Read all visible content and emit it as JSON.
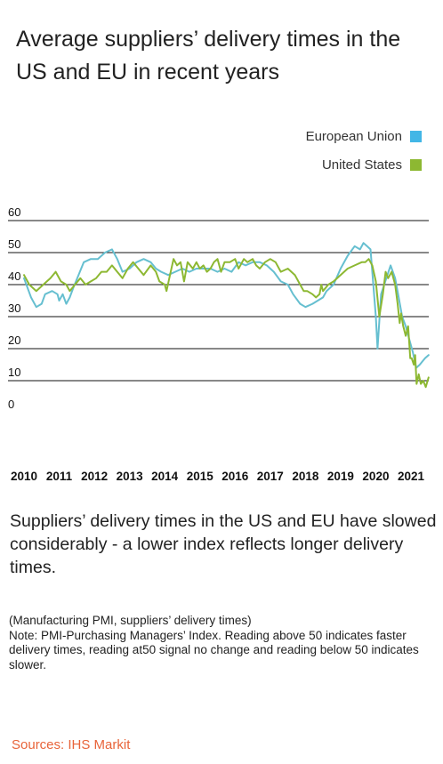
{
  "title": "Average suppliers’ delivery times in the US and EU in recent years",
  "subtitle": "Suppliers’ delivery times in the US and EU have slowed considerably - a lower index reflects longer delivery times.",
  "notes": {
    "line1": "(Manufacturing PMI, suppliers’ delivery times)",
    "line2": "Note: PMI-Purchasing Managers’ Index. Reading above 50 indicates faster delivery times, reading at50 signal no change and reading below 50 indicates slower."
  },
  "source": "Sources: IHS Markit",
  "colors": {
    "eu": "#66bfd0",
    "us": "#8db832",
    "grid": "#111111",
    "source": "#e8643a"
  },
  "legend": [
    {
      "label": "European Union",
      "color": "#42b6e6"
    },
    {
      "label": "United States",
      "color": "#8db832"
    }
  ],
  "chart_data": {
    "type": "line",
    "title": "Average suppliers’ delivery times in the US and EU in recent years",
    "xlabel": "",
    "ylabel": "",
    "xlim": [
      2010,
      2021.55
    ],
    "ylim": [
      0,
      60
    ],
    "yticks": [
      0,
      10,
      20,
      30,
      40,
      50,
      60
    ],
    "xticks": [
      2010,
      2011,
      2012,
      2013,
      2014,
      2015,
      2016,
      2017,
      2018,
      2019,
      2020,
      2021
    ],
    "grid": true,
    "legend_position": "top-right",
    "series": [
      {
        "name": "European Union",
        "color": "#66bfd0",
        "points": [
          [
            2010.0,
            42
          ],
          [
            2010.2,
            36
          ],
          [
            2010.35,
            33
          ],
          [
            2010.5,
            34
          ],
          [
            2010.6,
            37
          ],
          [
            2010.8,
            38
          ],
          [
            2010.95,
            37
          ],
          [
            2011.0,
            35
          ],
          [
            2011.1,
            37
          ],
          [
            2011.2,
            34
          ],
          [
            2011.3,
            36
          ],
          [
            2011.4,
            39
          ],
          [
            2011.55,
            43
          ],
          [
            2011.7,
            47
          ],
          [
            2011.9,
            48
          ],
          [
            2012.1,
            48
          ],
          [
            2012.3,
            50
          ],
          [
            2012.5,
            51
          ],
          [
            2012.65,
            48
          ],
          [
            2012.8,
            44
          ],
          [
            2013.0,
            45
          ],
          [
            2013.2,
            47
          ],
          [
            2013.4,
            48
          ],
          [
            2013.6,
            47
          ],
          [
            2013.75,
            45
          ],
          [
            2013.9,
            44
          ],
          [
            2014.1,
            43
          ],
          [
            2014.3,
            44
          ],
          [
            2014.5,
            45
          ],
          [
            2014.7,
            44
          ],
          [
            2014.9,
            45
          ],
          [
            2015.1,
            45
          ],
          [
            2015.3,
            45
          ],
          [
            2015.5,
            44
          ],
          [
            2015.7,
            45
          ],
          [
            2015.9,
            44
          ],
          [
            2016.1,
            47
          ],
          [
            2016.3,
            46
          ],
          [
            2016.5,
            47
          ],
          [
            2016.7,
            47
          ],
          [
            2016.9,
            46
          ],
          [
            2017.1,
            44
          ],
          [
            2017.3,
            41
          ],
          [
            2017.5,
            40
          ],
          [
            2017.65,
            37
          ],
          [
            2017.85,
            34
          ],
          [
            2018.0,
            33
          ],
          [
            2018.2,
            34
          ],
          [
            2018.35,
            35
          ],
          [
            2018.5,
            36
          ],
          [
            2018.6,
            38
          ],
          [
            2018.8,
            40
          ],
          [
            2019.0,
            45
          ],
          [
            2019.2,
            49
          ],
          [
            2019.4,
            52
          ],
          [
            2019.55,
            51
          ],
          [
            2019.65,
            53
          ],
          [
            2019.75,
            52
          ],
          [
            2019.85,
            51
          ],
          [
            2019.9,
            44
          ],
          [
            2020.0,
            30
          ],
          [
            2020.05,
            20
          ],
          [
            2020.15,
            37
          ],
          [
            2020.3,
            42
          ],
          [
            2020.42,
            46
          ],
          [
            2020.55,
            42
          ],
          [
            2020.65,
            36
          ],
          [
            2020.75,
            30
          ],
          [
            2020.85,
            27
          ],
          [
            2020.95,
            23
          ],
          [
            2021.05,
            19
          ],
          [
            2021.15,
            14
          ],
          [
            2021.25,
            15
          ],
          [
            2021.4,
            17
          ],
          [
            2021.5,
            18
          ]
        ]
      },
      {
        "name": "United States",
        "color": "#8db832",
        "points": [
          [
            2010.0,
            43
          ],
          [
            2010.15,
            40
          ],
          [
            2010.35,
            38
          ],
          [
            2010.55,
            40
          ],
          [
            2010.75,
            42
          ],
          [
            2010.9,
            44
          ],
          [
            2011.05,
            41
          ],
          [
            2011.2,
            40
          ],
          [
            2011.3,
            38
          ],
          [
            2011.45,
            40
          ],
          [
            2011.6,
            42
          ],
          [
            2011.75,
            40
          ],
          [
            2011.9,
            41
          ],
          [
            2012.05,
            42
          ],
          [
            2012.2,
            44
          ],
          [
            2012.35,
            44
          ],
          [
            2012.5,
            46
          ],
          [
            2012.65,
            44
          ],
          [
            2012.8,
            42
          ],
          [
            2012.95,
            45
          ],
          [
            2013.1,
            47
          ],
          [
            2013.25,
            45
          ],
          [
            2013.4,
            43
          ],
          [
            2013.6,
            46
          ],
          [
            2013.75,
            44
          ],
          [
            2013.85,
            41
          ],
          [
            2014.0,
            40
          ],
          [
            2014.05,
            38
          ],
          [
            2014.15,
            43
          ],
          [
            2014.25,
            48
          ],
          [
            2014.35,
            46
          ],
          [
            2014.45,
            47
          ],
          [
            2014.55,
            41
          ],
          [
            2014.65,
            47
          ],
          [
            2014.8,
            45
          ],
          [
            2014.9,
            47
          ],
          [
            2015.0,
            45
          ],
          [
            2015.1,
            46
          ],
          [
            2015.2,
            44
          ],
          [
            2015.3,
            45
          ],
          [
            2015.4,
            47
          ],
          [
            2015.5,
            48
          ],
          [
            2015.6,
            44
          ],
          [
            2015.7,
            47
          ],
          [
            2015.85,
            47
          ],
          [
            2016.0,
            48
          ],
          [
            2016.1,
            45
          ],
          [
            2016.25,
            48
          ],
          [
            2016.35,
            47
          ],
          [
            2016.5,
            48
          ],
          [
            2016.6,
            46
          ],
          [
            2016.7,
            45
          ],
          [
            2016.85,
            47
          ],
          [
            2017.0,
            48
          ],
          [
            2017.15,
            47
          ],
          [
            2017.3,
            44
          ],
          [
            2017.5,
            45
          ],
          [
            2017.7,
            43
          ],
          [
            2017.85,
            40
          ],
          [
            2017.95,
            38
          ],
          [
            2018.05,
            38
          ],
          [
            2018.2,
            37
          ],
          [
            2018.3,
            36
          ],
          [
            2018.4,
            37
          ],
          [
            2018.45,
            40
          ],
          [
            2018.5,
            38
          ],
          [
            2018.65,
            40
          ],
          [
            2018.8,
            41
          ],
          [
            2019.0,
            43
          ],
          [
            2019.2,
            45
          ],
          [
            2019.4,
            46
          ],
          [
            2019.6,
            47
          ],
          [
            2019.7,
            47
          ],
          [
            2019.8,
            48
          ],
          [
            2019.9,
            46
          ],
          [
            2020.0,
            41
          ],
          [
            2020.1,
            30
          ],
          [
            2020.2,
            37
          ],
          [
            2020.28,
            44
          ],
          [
            2020.35,
            42
          ],
          [
            2020.45,
            44
          ],
          [
            2020.55,
            40
          ],
          [
            2020.62,
            34
          ],
          [
            2020.68,
            28
          ],
          [
            2020.72,
            31
          ],
          [
            2020.78,
            27
          ],
          [
            2020.85,
            24
          ],
          [
            2020.92,
            27
          ],
          [
            2020.98,
            17
          ],
          [
            2021.02,
            17
          ],
          [
            2021.08,
            15
          ],
          [
            2021.12,
            18
          ],
          [
            2021.16,
            9
          ],
          [
            2021.22,
            12
          ],
          [
            2021.28,
            9
          ],
          [
            2021.35,
            10
          ],
          [
            2021.42,
            8
          ],
          [
            2021.5,
            11
          ]
        ]
      }
    ]
  }
}
